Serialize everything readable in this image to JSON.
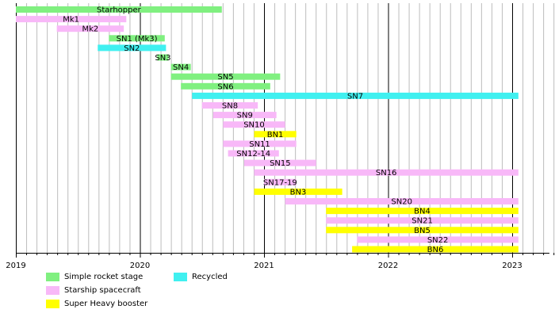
{
  "chart_data": {
    "type": "gantt",
    "x_axis": {
      "range": [
        2019.0,
        2023.3
      ],
      "major_ticks": [
        2019,
        2020,
        2021,
        2022,
        2023
      ],
      "minor_step_months": 1,
      "tick_labels": [
        "2019",
        "2020",
        "2021",
        "2022",
        "2023"
      ]
    },
    "categories": {
      "simple": {
        "label": "Simple rocket stage",
        "color": "#80f080"
      },
      "starship": {
        "label": "Starship spacecraft",
        "color": "#f8b8f8"
      },
      "booster": {
        "label": "Super Heavy booster",
        "color": "#ffff00"
      },
      "recycled": {
        "label": "Recycled",
        "color": "#40f0f0"
      }
    },
    "bars": [
      {
        "name": "Starhopper",
        "start": 2019.0,
        "end": 2020.66,
        "category": "simple"
      },
      {
        "name": "Mk1",
        "start": 2019.0,
        "end": 2019.89,
        "category": "starship"
      },
      {
        "name": "Mk2",
        "start": 2019.33,
        "end": 2019.87,
        "category": "starship"
      },
      {
        "name": "SN1 (Mk3)",
        "start": 2019.75,
        "end": 2020.2,
        "category": "simple"
      },
      {
        "name": "SN2",
        "start": 2019.66,
        "end": 2020.21,
        "category": "recycled"
      },
      {
        "name": "SN3",
        "start": 2020.14,
        "end": 2020.23,
        "category": "simple"
      },
      {
        "name": "SN4",
        "start": 2020.25,
        "end": 2020.41,
        "category": "simple"
      },
      {
        "name": "SN5",
        "start": 2020.25,
        "end": 2021.13,
        "category": "simple"
      },
      {
        "name": "SN6",
        "start": 2020.33,
        "end": 2021.05,
        "category": "simple"
      },
      {
        "name": "SN7",
        "start": 2020.42,
        "end": 2023.05,
        "category": "recycled"
      },
      {
        "name": "SN8",
        "start": 2020.5,
        "end": 2020.95,
        "category": "starship"
      },
      {
        "name": "SN9",
        "start": 2020.59,
        "end": 2021.1,
        "category": "starship"
      },
      {
        "name": "SN10",
        "start": 2020.67,
        "end": 2021.17,
        "category": "starship"
      },
      {
        "name": "BN1",
        "start": 2020.92,
        "end": 2021.26,
        "category": "booster"
      },
      {
        "name": "SN11",
        "start": 2020.67,
        "end": 2021.26,
        "category": "starship"
      },
      {
        "name": "SN12-14",
        "start": 2020.71,
        "end": 2021.12,
        "category": "starship"
      },
      {
        "name": "SN15",
        "start": 2020.84,
        "end": 2021.42,
        "category": "starship"
      },
      {
        "name": "SN16",
        "start": 2020.92,
        "end": 2023.05,
        "category": "starship"
      },
      {
        "name": "SN17-19",
        "start": 2021.0,
        "end": 2021.26,
        "category": "starship"
      },
      {
        "name": "BN3",
        "start": 2020.92,
        "end": 2021.63,
        "category": "booster"
      },
      {
        "name": "SN20",
        "start": 2021.17,
        "end": 2023.05,
        "category": "starship"
      },
      {
        "name": "BN4",
        "start": 2021.5,
        "end": 2023.05,
        "category": "booster"
      },
      {
        "name": "SN21",
        "start": 2021.5,
        "end": 2023.05,
        "category": "starship"
      },
      {
        "name": "BN5",
        "start": 2021.5,
        "end": 2023.05,
        "category": "booster"
      },
      {
        "name": "SN22",
        "start": 2021.75,
        "end": 2023.05,
        "category": "starship"
      },
      {
        "name": "BN6",
        "start": 2021.71,
        "end": 2023.05,
        "category": "booster"
      }
    ]
  },
  "legend": {
    "simple": "Simple rocket stage",
    "starship": "Starship spacecraft",
    "booster": "Super Heavy booster",
    "recycled": "Recycled"
  }
}
